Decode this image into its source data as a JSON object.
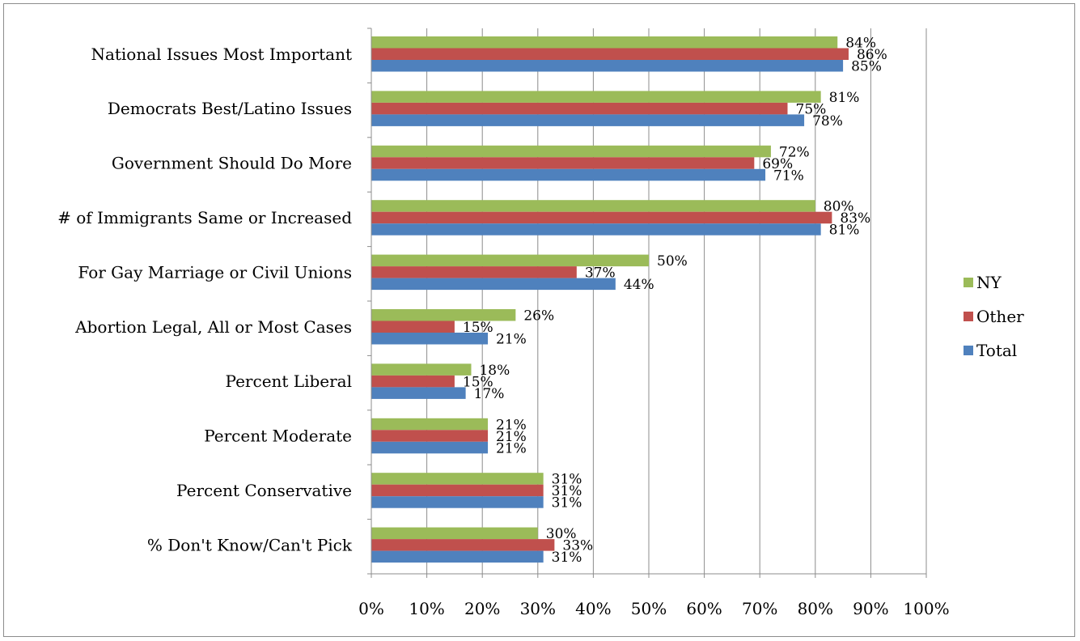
{
  "chart_data": {
    "type": "bar",
    "orientation": "horizontal",
    "categories": [
      "National Issues Most Important",
      "Democrats Best/Latino Issues",
      "Government Should Do More",
      "# of Immigrants Same or Increased",
      "For Gay Marriage or Civil Unions",
      "Abortion Legal, All or Most Cases",
      "Percent Liberal",
      "Percent Moderate",
      "Percent Conservative",
      "% Don't Know/Can't Pick"
    ],
    "series": [
      {
        "name": "NY",
        "color": "#9BBB59",
        "values": [
          84,
          81,
          72,
          80,
          50,
          26,
          18,
          21,
          31,
          30
        ],
        "labels": [
          "84%",
          "81%",
          "72%",
          "80%",
          "50%",
          "26%",
          "18%",
          "21%",
          "31%",
          "30%"
        ]
      },
      {
        "name": "Other",
        "color": "#C0504D",
        "values": [
          86,
          75,
          69,
          83,
          37,
          15,
          15,
          21,
          31,
          33
        ],
        "labels": [
          "86%",
          "75%",
          "69%",
          "83%",
          "37%",
          "15%",
          "15%",
          "21%",
          "31%",
          "33%"
        ]
      },
      {
        "name": "Total",
        "color": "#4F81BD",
        "values": [
          85,
          78,
          71,
          81,
          44,
          21,
          17,
          21,
          31,
          31
        ],
        "labels": [
          "85%",
          "78%",
          "71%",
          "81%",
          "44%",
          "21%",
          "17%",
          "21%",
          "31%",
          "31%"
        ]
      }
    ],
    "xlim": [
      0,
      100
    ],
    "xticks": [
      "0%",
      "10%",
      "20%",
      "30%",
      "40%",
      "50%",
      "60%",
      "70%",
      "80%",
      "90%",
      "100%"
    ],
    "grid": true,
    "legend": "right",
    "legend_order": [
      "NY",
      "Other",
      "Total"
    ]
  }
}
